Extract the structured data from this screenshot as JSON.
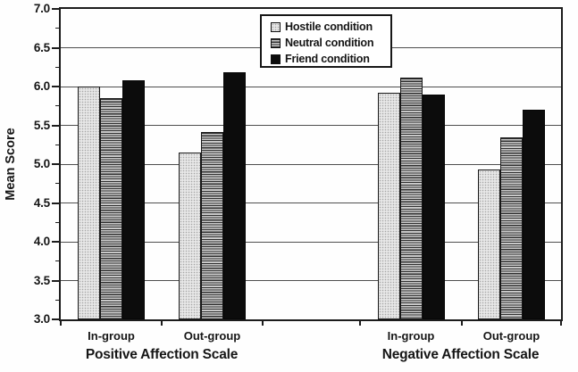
{
  "chart_data": {
    "type": "bar",
    "title": "",
    "ylabel": "Mean Score",
    "ylim": [
      3.0,
      7.0
    ],
    "ytick_labels": [
      "7.0",
      "6.5",
      "6.0",
      "5.5",
      "5.0",
      "4.5",
      "4.0",
      "3.5",
      "3.0"
    ],
    "ytick_minor_step": 0.25,
    "grid": "horizontal-major-on",
    "legend": {
      "position": "top-center-inside",
      "bordered": true
    },
    "group_axes": [
      {
        "scale_label": "Positive Affection Scale",
        "categories": [
          "In-group",
          "Out-group"
        ]
      },
      {
        "scale_label": "Negative Affection Scale",
        "categories": [
          "In-group",
          "Out-group"
        ]
      }
    ],
    "categories": [
      "Positive In-group",
      "Positive Out-group",
      "Negative In-group",
      "Negative Out-group"
    ],
    "series": [
      {
        "name": "Hostile condition",
        "fill": "light-stipple",
        "swatch_color": "#e7e7e7",
        "values": [
          6.0,
          5.15,
          5.92,
          4.93
        ]
      },
      {
        "name": "Neutral condition",
        "fill": "horizontal-stripes",
        "swatch_color": "#9c9c9c",
        "values": [
          5.85,
          5.42,
          6.12,
          5.34
        ]
      },
      {
        "name": "Friend condition",
        "fill": "solid-black",
        "swatch_color": "#0c0c0c",
        "values": [
          6.08,
          6.19,
          5.9,
          5.7
        ]
      }
    ],
    "colors": {
      "ink": "#161616",
      "background": "#ffffff"
    }
  }
}
